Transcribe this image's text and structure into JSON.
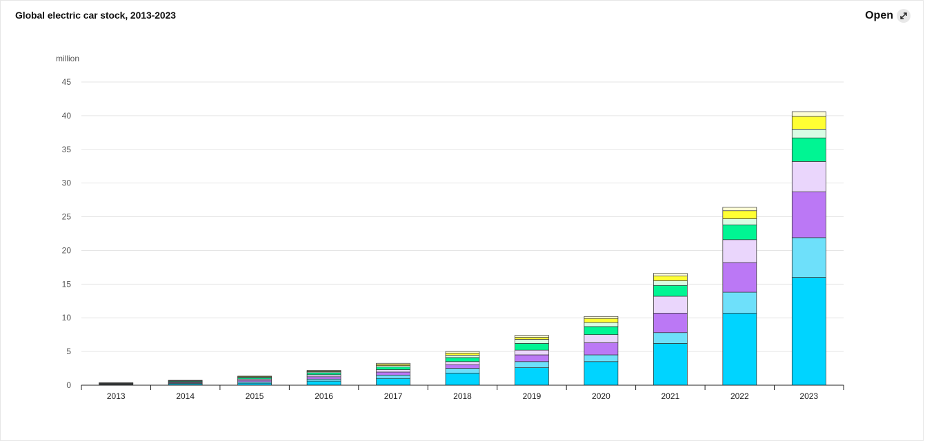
{
  "header": {
    "title": "Global electric car stock, 2013-2023",
    "open_label": "Open",
    "open_icon": "expand-arrows-icon"
  },
  "chart_data": {
    "type": "bar",
    "stacked": true,
    "title": "Global electric car stock, 2013-2023",
    "ylabel": "million",
    "xlabel": "",
    "ylim": [
      0,
      45
    ],
    "yticks": [
      0,
      5,
      10,
      15,
      20,
      25,
      30,
      35,
      40,
      45
    ],
    "grid": true,
    "categories": [
      "2013",
      "2014",
      "2015",
      "2016",
      "2017",
      "2018",
      "2019",
      "2020",
      "2021",
      "2022",
      "2023"
    ],
    "series": [
      {
        "color": "#00d4ff",
        "values": [
          0.1,
          0.2,
          0.3,
          0.6,
          1.0,
          1.8,
          2.6,
          3.5,
          6.2,
          10.7,
          16.0
        ]
      },
      {
        "color": "#6ee0fa",
        "values": [
          0.05,
          0.1,
          0.2,
          0.3,
          0.5,
          0.7,
          0.9,
          1.0,
          1.6,
          3.1,
          5.9
        ]
      },
      {
        "color": "#bb78f5",
        "values": [
          0.05,
          0.1,
          0.2,
          0.35,
          0.45,
          0.55,
          1.0,
          1.8,
          2.9,
          4.4,
          6.8
        ]
      },
      {
        "color": "#ead6fc",
        "values": [
          0.05,
          0.1,
          0.2,
          0.3,
          0.35,
          0.45,
          0.7,
          1.2,
          2.5,
          3.4,
          4.5
        ]
      },
      {
        "color": "#00f593",
        "values": [
          0.05,
          0.1,
          0.2,
          0.3,
          0.4,
          0.6,
          1.0,
          1.2,
          1.6,
          2.2,
          3.5
        ]
      },
      {
        "color": "#d9fce4",
        "values": [
          0.03,
          0.05,
          0.1,
          0.15,
          0.2,
          0.35,
          0.6,
          0.6,
          0.7,
          0.9,
          1.3
        ]
      },
      {
        "color": "#ffff33",
        "values": [
          0.02,
          0.05,
          0.1,
          0.1,
          0.2,
          0.3,
          0.3,
          0.6,
          0.7,
          1.2,
          1.9
        ]
      },
      {
        "color": "#fdfdd5",
        "values": [
          0.01,
          0.03,
          0.05,
          0.1,
          0.15,
          0.25,
          0.3,
          0.3,
          0.4,
          0.5,
          0.7
        ]
      }
    ]
  }
}
